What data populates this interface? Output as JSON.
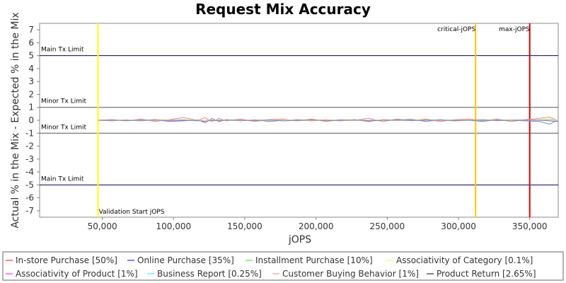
{
  "chart_data": {
    "type": "line",
    "title": "Request Mix Accuracy",
    "xlabel": "jOPS",
    "ylabel": "Actual % in the Mix - Expected % in the Mix",
    "xlim": [
      6000,
      370000
    ],
    "ylim": [
      -7.5,
      7.5
    ],
    "xticks": [
      50000,
      100000,
      150000,
      200000,
      250000,
      300000,
      350000
    ],
    "xtick_labels": [
      "50,000",
      "100,000",
      "150,000",
      "200,000",
      "250,000",
      "300,000",
      "350,000"
    ],
    "yticks": [
      -7,
      -6,
      -5,
      -4,
      -3,
      -2,
      -1,
      0,
      1,
      2,
      3,
      4,
      5,
      6,
      7
    ],
    "grid": false,
    "legend_position": "bottom",
    "horizontal_markers": [
      {
        "value": 5,
        "label": "Main Tx Limit",
        "color": "#000066"
      },
      {
        "value": 1,
        "label": "Minor Tx Limit",
        "color": "#555555"
      },
      {
        "value": -1,
        "label": "Minor Tx Limit",
        "color": "#555555"
      },
      {
        "value": -5,
        "label": "Main Tx Limit",
        "color": "#000066"
      }
    ],
    "vertical_markers": [
      {
        "value": 47000,
        "label": "Validation Start jOPS",
        "color": "#ffff00",
        "label_position": "bottom"
      },
      {
        "value": 312000,
        "label": "critical-jOPS",
        "color": "#ffc800",
        "label_position": "top"
      },
      {
        "value": 350000,
        "label": "max-jOPS",
        "color": "#dd0000",
        "label_position": "top"
      }
    ],
    "x": [
      47000,
      57000,
      67000,
      77000,
      87000,
      97000,
      107000,
      117000,
      122000,
      127000,
      132000,
      137000,
      147000,
      157000,
      167000,
      177000,
      187000,
      197000,
      207000,
      217000,
      227000,
      237000,
      247000,
      257000,
      267000,
      277000,
      287000,
      297000,
      307000,
      317000,
      327000,
      337000,
      347000,
      357000,
      364000,
      370000
    ],
    "series": [
      {
        "name": "In-store Purchase [50%]",
        "color": "#ff8080",
        "values": [
          0.0,
          0.05,
          -0.05,
          0.1,
          -0.1,
          0.05,
          0.2,
          0.0,
          0.2,
          -0.1,
          0.15,
          -0.05,
          0.1,
          -0.1,
          0.05,
          0.1,
          -0.05,
          0.1,
          -0.1,
          0.05,
          0.0,
          0.15,
          -0.1,
          0.1,
          -0.05,
          0.1,
          -0.1,
          0.05,
          0.1,
          -0.05,
          0.1,
          -0.1,
          0.05,
          0.15,
          0.25,
          -0.05
        ]
      },
      {
        "name": "Online Purchase [35%]",
        "color": "#8080ff",
        "values": [
          0.0,
          -0.05,
          0.05,
          -0.05,
          0.05,
          -0.1,
          -0.05,
          0.05,
          -0.2,
          0.15,
          -0.1,
          0.05,
          -0.05,
          0.05,
          -0.1,
          0.0,
          0.05,
          -0.05,
          0.05,
          -0.05,
          0.05,
          -0.1,
          0.05,
          0.0,
          0.1,
          -0.1,
          0.05,
          -0.05,
          0.0,
          -0.1,
          0.05,
          0.0,
          -0.05,
          -0.1,
          -0.3,
          0.05
        ]
      },
      {
        "name": "Installment Purchase [10%]",
        "color": "#80ff80",
        "values": [
          0.0,
          0.02,
          0.0,
          -0.02,
          0.03,
          0.0,
          0.05,
          -0.03,
          0.0,
          0.02,
          0.05,
          0.0,
          -0.03,
          0.02,
          0.0,
          0.05,
          0.0,
          -0.02,
          0.02,
          0.0,
          0.03,
          0.0,
          0.02,
          -0.02,
          0.05,
          0.0,
          0.02,
          0.0,
          -0.02,
          0.05,
          0.0,
          0.02,
          0.0,
          0.05,
          0.1,
          0.0
        ]
      },
      {
        "name": "Associativity of Category [0.1%]",
        "color": "#ffff80",
        "values": [
          0.0,
          0.0,
          0.01,
          0.0,
          0.0,
          0.01,
          0.0,
          0.0,
          0.01,
          0.0,
          0.0,
          0.01,
          0.0,
          0.0,
          0.01,
          0.0,
          0.0,
          0.01,
          0.0,
          0.0,
          0.01,
          0.0,
          0.0,
          0.01,
          0.0,
          0.0,
          0.01,
          0.0,
          0.0,
          0.01,
          0.0,
          0.0,
          0.01,
          0.0,
          0.0,
          0.0
        ]
      },
      {
        "name": "Associativity of Product [1%]",
        "color": "#ff80ff",
        "values": [
          0.0,
          0.01,
          -0.01,
          0.02,
          0.0,
          -0.02,
          0.01,
          0.02,
          0.0,
          -0.01,
          0.02,
          0.0,
          -0.01,
          0.01,
          0.0,
          0.02,
          -0.01,
          0.0,
          0.01,
          -0.02,
          0.0,
          0.01,
          0.0,
          -0.01,
          0.02,
          0.0,
          -0.01,
          0.01,
          0.0,
          0.02,
          -0.01,
          0.0,
          0.01,
          0.0,
          0.02,
          0.0
        ]
      },
      {
        "name": "Business Report [0.25%]",
        "color": "#80ffff",
        "values": [
          0.0,
          0.0,
          0.01,
          0.0,
          -0.01,
          0.0,
          0.01,
          0.0,
          0.0,
          -0.01,
          0.0,
          0.01,
          0.0,
          0.0,
          -0.01,
          0.0,
          0.01,
          0.0,
          0.0,
          -0.01,
          0.0,
          0.01,
          0.0,
          0.0,
          -0.01,
          0.0,
          0.01,
          0.0,
          0.0,
          -0.01,
          0.0,
          0.01,
          0.0,
          0.0,
          0.0,
          0.0
        ]
      },
      {
        "name": "Customer Buying Behavior [1%]",
        "color": "#ffc0c0",
        "values": [
          0.0,
          -0.02,
          0.02,
          0.0,
          -0.02,
          0.03,
          0.0,
          -0.05,
          0.0,
          0.03,
          -0.02,
          0.0,
          0.02,
          -0.02,
          0.0,
          0.03,
          0.0,
          -0.02,
          0.02,
          0.0,
          -0.03,
          0.0,
          0.02,
          0.0,
          -0.02,
          0.03,
          0.0,
          -0.02,
          0.0,
          0.02,
          -0.02,
          0.0,
          0.02,
          0.0,
          0.05,
          0.0
        ]
      },
      {
        "name": "Product Return [2.65%]",
        "color": "#808080",
        "values": [
          0.0,
          0.01,
          -0.02,
          0.0,
          0.02,
          -0.01,
          0.0,
          -0.03,
          -0.1,
          0.0,
          -0.05,
          0.02,
          0.0,
          -0.02,
          0.02,
          -0.05,
          0.0,
          0.02,
          -0.02,
          0.0,
          0.02,
          -0.05,
          0.0,
          0.02,
          -0.02,
          0.0,
          0.02,
          -0.02,
          0.0,
          0.02,
          -0.02,
          0.0,
          0.02,
          0.0,
          -0.05,
          -0.1
        ]
      }
    ]
  }
}
